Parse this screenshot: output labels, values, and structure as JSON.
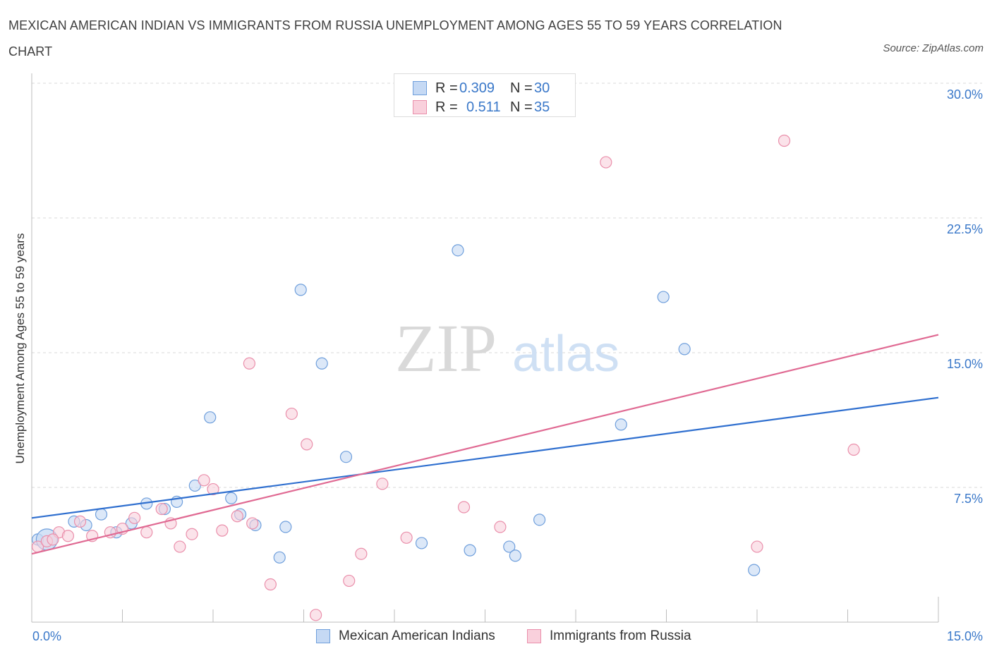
{
  "title": "MEXICAN AMERICAN INDIAN VS IMMIGRANTS FROM RUSSIA UNEMPLOYMENT AMONG AGES 55 TO 59 YEARS CORRELATION CHART",
  "source": "Source: ZipAtlas.com",
  "watermark": {
    "zip": "ZIP",
    "atlas": "atlas"
  },
  "legend_top": [
    {
      "r_label": "R =",
      "r_value": "0.309",
      "n_label": "N =",
      "n_value": "30",
      "color": "#a9c6ef"
    },
    {
      "r_label": "R =",
      "r_value": "0.511",
      "n_label": "N =",
      "n_value": "35",
      "color": "#f5b3c7"
    }
  ],
  "legend_bottom": [
    {
      "label": "Mexican American Indians",
      "color": "#a9c6ef"
    },
    {
      "label": "Immigrants from Russia",
      "color": "#f5b3c7"
    }
  ],
  "colors": {
    "blue_fill": "#c5d9f4",
    "blue_stroke": "#6f9fdc",
    "blue_line": "#2f6fcf",
    "pink_fill": "#f9d0dc",
    "pink_stroke": "#ea8fab",
    "pink_line": "#e06a93",
    "tick_text": "#3a78c9",
    "grid": "#d9d9d9"
  },
  "chart_data": {
    "type": "scatter",
    "title": "MEXICAN AMERICAN INDIAN VS IMMIGRANTS FROM RUSSIA UNEMPLOYMENT AMONG AGES 55 TO 59 YEARS CORRELATION CHART",
    "xlabel": "",
    "ylabel": "Unemployment Among Ages 55 to 59 years",
    "xlim": [
      0,
      15
    ],
    "ylim": [
      0,
      30
    ],
    "x_tick_labels": [
      "0.0%",
      "15.0%"
    ],
    "y_ticks": [
      7.5,
      15,
      22.5,
      30
    ],
    "y_tick_labels": [
      "7.5%",
      "15.0%",
      "22.5%",
      "30.0%"
    ],
    "grid": true,
    "series": [
      {
        "name": "Mexican American Indians",
        "r": 0.309,
        "n": 30,
        "points": [
          [
            0.1,
            4.6
          ],
          [
            0.7,
            5.6
          ],
          [
            0.9,
            5.4
          ],
          [
            1.15,
            6.0
          ],
          [
            1.4,
            5.0
          ],
          [
            1.65,
            5.5
          ],
          [
            1.9,
            6.6
          ],
          [
            2.2,
            6.3
          ],
          [
            2.4,
            6.7
          ],
          [
            2.7,
            7.6
          ],
          [
            2.95,
            11.4
          ],
          [
            3.3,
            6.9
          ],
          [
            3.45,
            6.0
          ],
          [
            3.7,
            5.4
          ],
          [
            4.1,
            3.6
          ],
          [
            4.2,
            5.3
          ],
          [
            4.45,
            18.5
          ],
          [
            4.8,
            14.4
          ],
          [
            5.2,
            9.2
          ],
          [
            6.45,
            4.4
          ],
          [
            7.05,
            20.7
          ],
          [
            7.25,
            4.0
          ],
          [
            7.9,
            4.2
          ],
          [
            8.0,
            3.7
          ],
          [
            8.4,
            5.7
          ],
          [
            9.75,
            11.0
          ],
          [
            10.45,
            18.1
          ],
          [
            10.8,
            15.2
          ],
          [
            11.95,
            2.9
          ],
          [
            0.25,
            4.6
          ]
        ],
        "trend": {
          "x": [
            0,
            15
          ],
          "y": [
            5.8,
            12.5
          ]
        }
      },
      {
        "name": "Immigrants from Russia",
        "r": 0.511,
        "n": 35,
        "points": [
          [
            0.1,
            4.2
          ],
          [
            0.25,
            4.5
          ],
          [
            0.45,
            5.0
          ],
          [
            0.6,
            4.8
          ],
          [
            0.8,
            5.6
          ],
          [
            1.0,
            4.8
          ],
          [
            1.3,
            5.0
          ],
          [
            1.5,
            5.2
          ],
          [
            1.7,
            5.8
          ],
          [
            1.9,
            5.0
          ],
          [
            2.15,
            6.3
          ],
          [
            2.3,
            5.5
          ],
          [
            2.45,
            4.2
          ],
          [
            2.65,
            4.9
          ],
          [
            2.85,
            7.9
          ],
          [
            3.0,
            7.4
          ],
          [
            3.15,
            5.1
          ],
          [
            3.4,
            5.9
          ],
          [
            3.6,
            14.4
          ],
          [
            3.65,
            5.5
          ],
          [
            3.95,
            2.1
          ],
          [
            4.3,
            11.6
          ],
          [
            4.55,
            9.9
          ],
          [
            4.7,
            0.4
          ],
          [
            5.25,
            2.3
          ],
          [
            5.45,
            3.8
          ],
          [
            5.8,
            7.7
          ],
          [
            6.2,
            4.7
          ],
          [
            7.15,
            6.4
          ],
          [
            7.75,
            5.3
          ],
          [
            9.5,
            25.6
          ],
          [
            12.45,
            26.8
          ],
          [
            12.0,
            4.2
          ],
          [
            13.6,
            9.6
          ],
          [
            0.35,
            4.6
          ]
        ],
        "trend": {
          "x": [
            0,
            15
          ],
          "y": [
            3.8,
            16.0
          ]
        }
      }
    ]
  }
}
